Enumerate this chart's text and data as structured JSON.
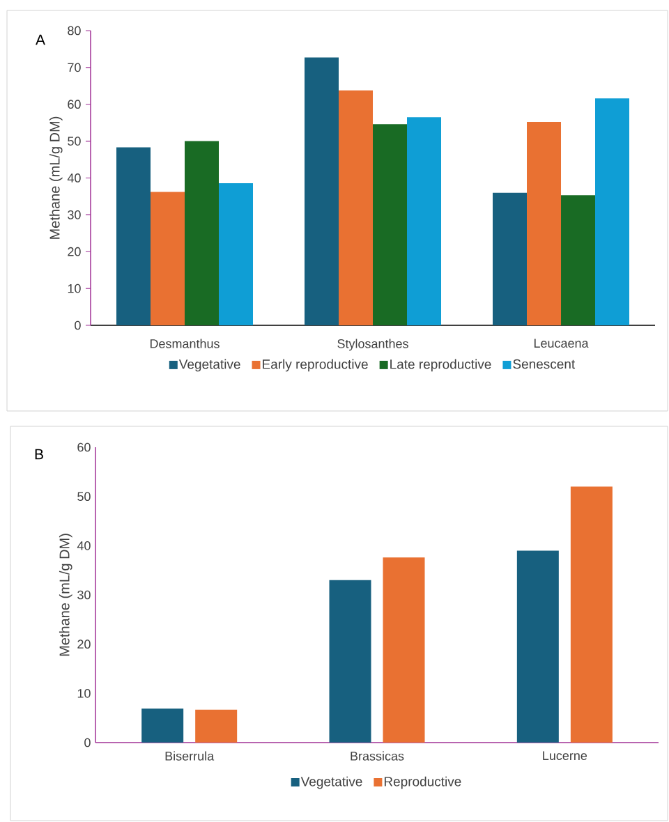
{
  "chart_data": [
    {
      "type": "bar",
      "annotations": [
        "A"
      ],
      "ylabel": "Methane (mL/g DM)",
      "categories": [
        "Desmanthus",
        "Stylosanthes",
        "Leucaena"
      ],
      "ylim": [
        0,
        80
      ],
      "yticks": [
        0,
        10,
        20,
        30,
        40,
        50,
        60,
        70,
        80
      ],
      "legend": "bottom",
      "series": [
        {
          "name": "Vegetative",
          "color": "#17607f",
          "values": [
            48.3,
            72.7,
            36.0
          ]
        },
        {
          "name": "Early reproductive",
          "color": "#e97132",
          "values": [
            36.2,
            63.8,
            55.2
          ]
        },
        {
          "name": "Late reproductive",
          "color": "#196b24",
          "values": [
            50.0,
            54.6,
            35.3
          ]
        },
        {
          "name": "Senescent",
          "color": "#0f9ed5",
          "values": [
            38.6,
            56.5,
            61.6
          ]
        }
      ]
    },
    {
      "type": "bar",
      "annotations": [
        "B"
      ],
      "ylabel": "Methane (mL/g DM)",
      "categories": [
        "Biserrula",
        "Brassicas",
        "Lucerne"
      ],
      "ylim": [
        0,
        60
      ],
      "yticks": [
        0,
        10,
        20,
        30,
        40,
        50,
        60
      ],
      "legend": "bottom",
      "series": [
        {
          "name": "Vegetative",
          "color": "#17607f",
          "values": [
            6.9,
            33.0,
            39.0
          ]
        },
        {
          "name": "Reproductive",
          "color": "#e97132",
          "values": [
            6.7,
            37.6,
            52.0
          ]
        }
      ]
    }
  ]
}
